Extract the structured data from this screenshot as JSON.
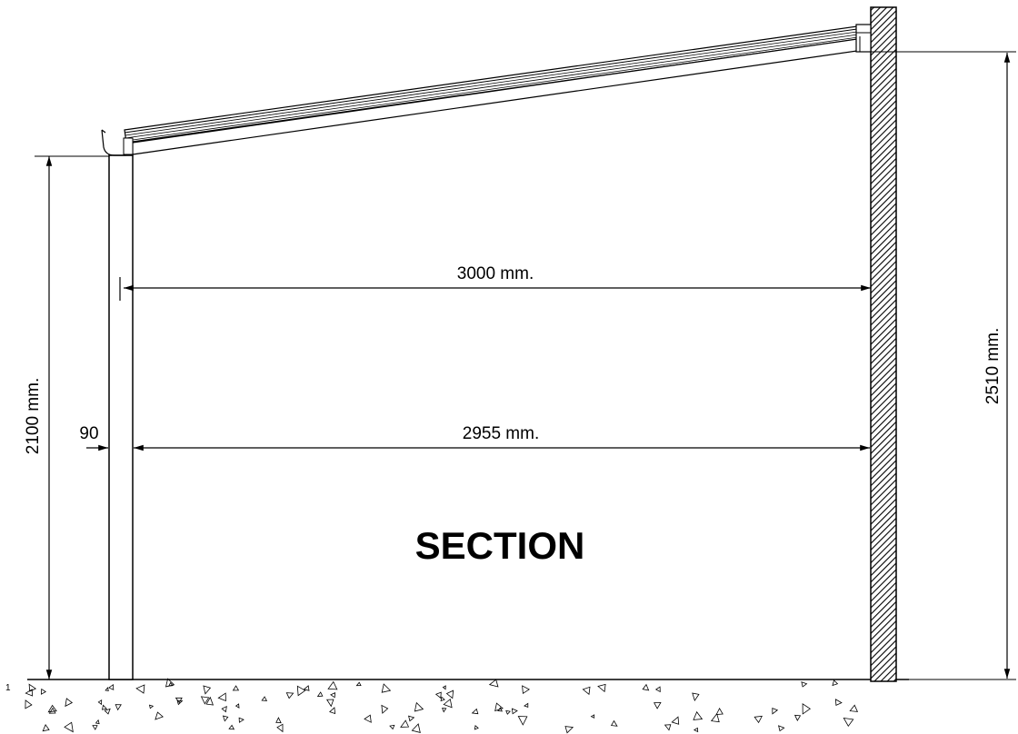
{
  "drawing": {
    "title": "SECTION",
    "dimensions": {
      "span_total": "3000 mm.",
      "span_clear": "2955 mm.",
      "post_height": "2100 mm.",
      "wall_height": "2510 mm.",
      "post_width": "90"
    },
    "decor": {
      "ground_mark": "1"
    }
  }
}
